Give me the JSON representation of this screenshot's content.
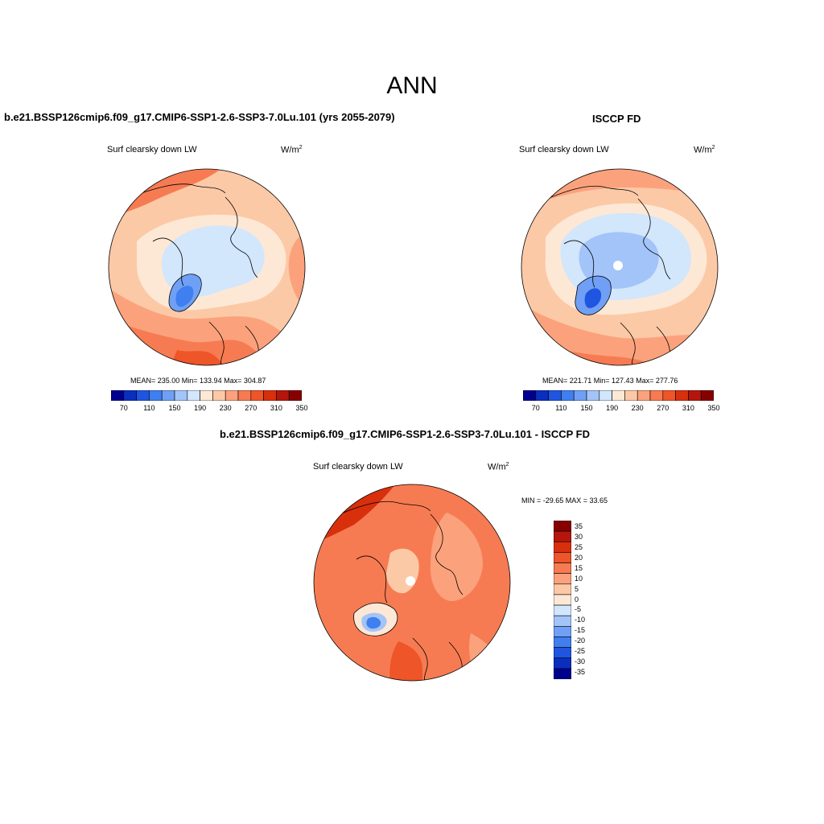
{
  "figure": {
    "season": "ANN"
  },
  "panels": [
    {
      "title": "b.e21.BSSP126cmip6.f09_g17.CMIP6-SSP1-2.6-SSP3-7.0Lu.101 (yrs 2055-2079)",
      "variable": "Surf clearsky down LW",
      "units": "W/m",
      "units_sup": "2",
      "stats": "MEAN= 235.00  Min= 133.94  Max= 304.87",
      "colorbar_ticks": [
        "70",
        "110",
        "150",
        "190",
        "230",
        "270",
        "310",
        "350"
      ]
    },
    {
      "title": "ISCCP FD",
      "variable": "Surf clearsky down LW",
      "units": "W/m",
      "units_sup": "2",
      "stats": "MEAN= 221.71  Min= 127.43  Max= 277.76",
      "colorbar_ticks": [
        "70",
        "110",
        "150",
        "190",
        "230",
        "270",
        "310",
        "350"
      ]
    },
    {
      "title": "b.e21.BSSP126cmip6.f09_g17.CMIP6-SSP1-2.6-SSP3-7.0Lu.101 - ISCCP FD",
      "variable": "Surf clearsky down LW",
      "units": "W/m",
      "units_sup": "2",
      "stats": "MIN = -29.65 MAX =  33.65",
      "colorbar_ticks": [
        "35",
        "30",
        "25",
        "20",
        "15",
        "10",
        "5",
        "0",
        "-5",
        "-10",
        "-15",
        "-20",
        "-25",
        "-30",
        "-35"
      ]
    }
  ],
  "colors": {
    "abs_palette": [
      "#00008f",
      "#0a2fbf",
      "#1f55e0",
      "#3f7ff0",
      "#6fa0f5",
      "#a3c4f9",
      "#d2e6fc",
      "#fde8d6",
      "#fcc9a7",
      "#fba27c",
      "#f77b52",
      "#ee5528",
      "#d8300d",
      "#b5160c",
      "#870000"
    ],
    "diff_palette": [
      "#870000",
      "#b5160c",
      "#d8300d",
      "#ee5528",
      "#f77b52",
      "#fba27c",
      "#fcc9a7",
      "#fde8d6",
      "#d2e6fc",
      "#a3c4f9",
      "#6fa0f5",
      "#3f7ff0",
      "#1f55e0",
      "#0a2fbf",
      "#00008f"
    ]
  }
}
